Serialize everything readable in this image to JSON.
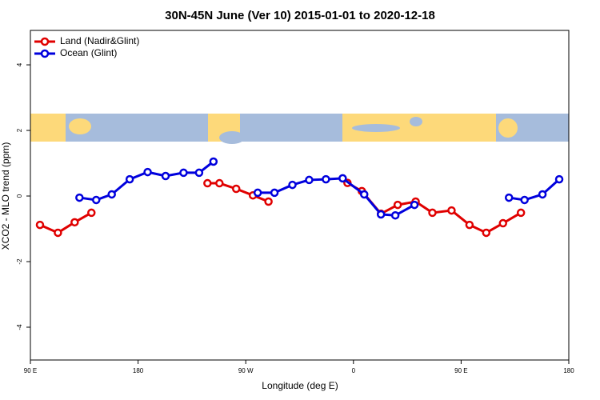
{
  "chart_data": {
    "type": "line",
    "title": "30N-45N June (Ver 10)   2015-01-01 to 2020-12-18",
    "x_label": "Longitude (deg E)",
    "y_label": "XCO2 - MLO trend (ppm)",
    "xlim": [
      90,
      540
    ],
    "ylim": [
      -5,
      5.05
    ],
    "xticks": [
      {
        "value": 90,
        "label": "90 E"
      },
      180,
      {
        "value": 270,
        "label": "90 W"
      },
      {
        "value": 360,
        "label": "0"
      },
      {
        "value": 450,
        "label": "90 E"
      },
      {
        "value": 540,
        "label": "180"
      }
    ],
    "yticks": [
      -4,
      -2,
      0,
      2,
      4
    ],
    "legend": "top-left",
    "series": [
      {
        "name": "Land (Nadir&Glint)",
        "color": "#e00000",
        "x": [
          98,
          113,
          127,
          141,
          null,
          238,
          248,
          262,
          276,
          289,
          null,
          355,
          367,
          383,
          397,
          412,
          426,
          442,
          457,
          471,
          485,
          500
        ],
        "values": [
          -0.88,
          -1.12,
          -0.8,
          -0.51,
          null,
          0.39,
          0.39,
          0.22,
          0.02,
          -0.17,
          null,
          0.4,
          0.15,
          -0.54,
          -0.27,
          -0.17,
          -0.51,
          -0.44,
          -0.88,
          -1.12,
          -0.83,
          -0.51
        ]
      },
      {
        "name": "Ocean (Glint)",
        "color": "#0000dd",
        "x": [
          131,
          145,
          158,
          173,
          188,
          203,
          218,
          231,
          243,
          null,
          280,
          294,
          309,
          323,
          337,
          351,
          369,
          383,
          395,
          411,
          null,
          490,
          503,
          518,
          532
        ],
        "values": [
          -0.05,
          -0.12,
          0.05,
          0.51,
          0.73,
          0.61,
          0.71,
          0.71,
          1.05,
          null,
          0.1,
          0.1,
          0.34,
          0.49,
          0.51,
          0.54,
          0.05,
          -0.56,
          -0.59,
          -0.27,
          null,
          -0.05,
          -0.12,
          0.05,
          0.51
        ]
      }
    ]
  }
}
